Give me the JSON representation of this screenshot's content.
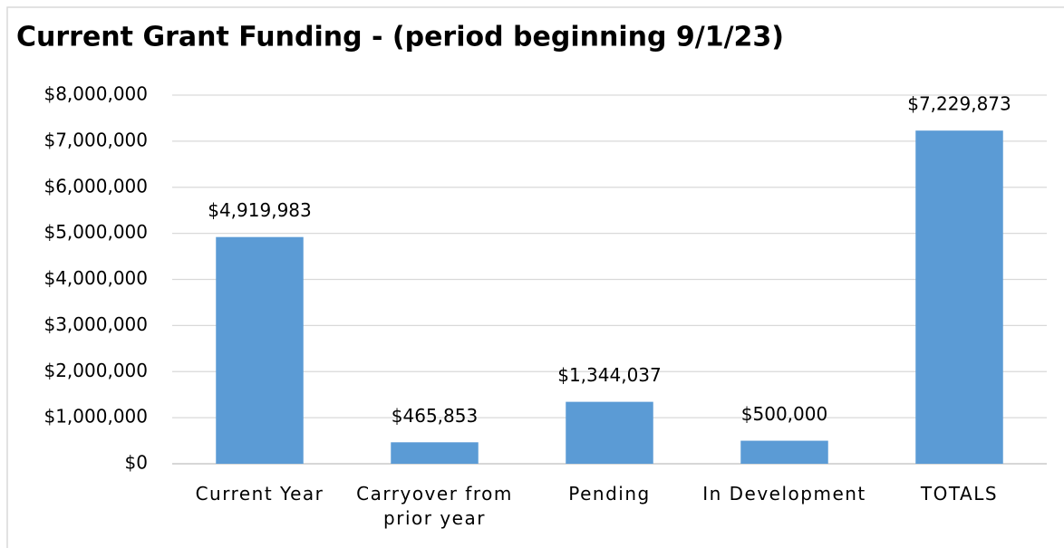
{
  "chart_data": {
    "type": "bar",
    "title": "Current Grant Funding  - (period beginning 9/1/23)",
    "categories": [
      "Current Year",
      "Carryover from prior year",
      "Pending",
      "In Development",
      "TOTALS"
    ],
    "values": [
      4919983,
      465853,
      1344037,
      500000,
      7229873
    ],
    "value_labels": [
      "$4,919,983",
      "$465,853",
      "$1,344,037",
      "$500,000",
      "$7,229,873"
    ],
    "color": "#5b9bd5",
    "ylim": [
      0,
      8000000
    ],
    "yticks": [
      {
        "value": 0,
        "label": "$0"
      },
      {
        "value": 1000000,
        "label": "$1,000,000"
      },
      {
        "value": 2000000,
        "label": "$2,000,000"
      },
      {
        "value": 3000000,
        "label": "$3,000,000"
      },
      {
        "value": 4000000,
        "label": "$4,000,000"
      },
      {
        "value": 5000000,
        "label": "$5,000,000"
      },
      {
        "value": 6000000,
        "label": "$6,000,000"
      },
      {
        "value": 7000000,
        "label": "$7,000,000"
      },
      {
        "value": 8000000,
        "label": "$8,000,000"
      }
    ],
    "grid": true
  }
}
